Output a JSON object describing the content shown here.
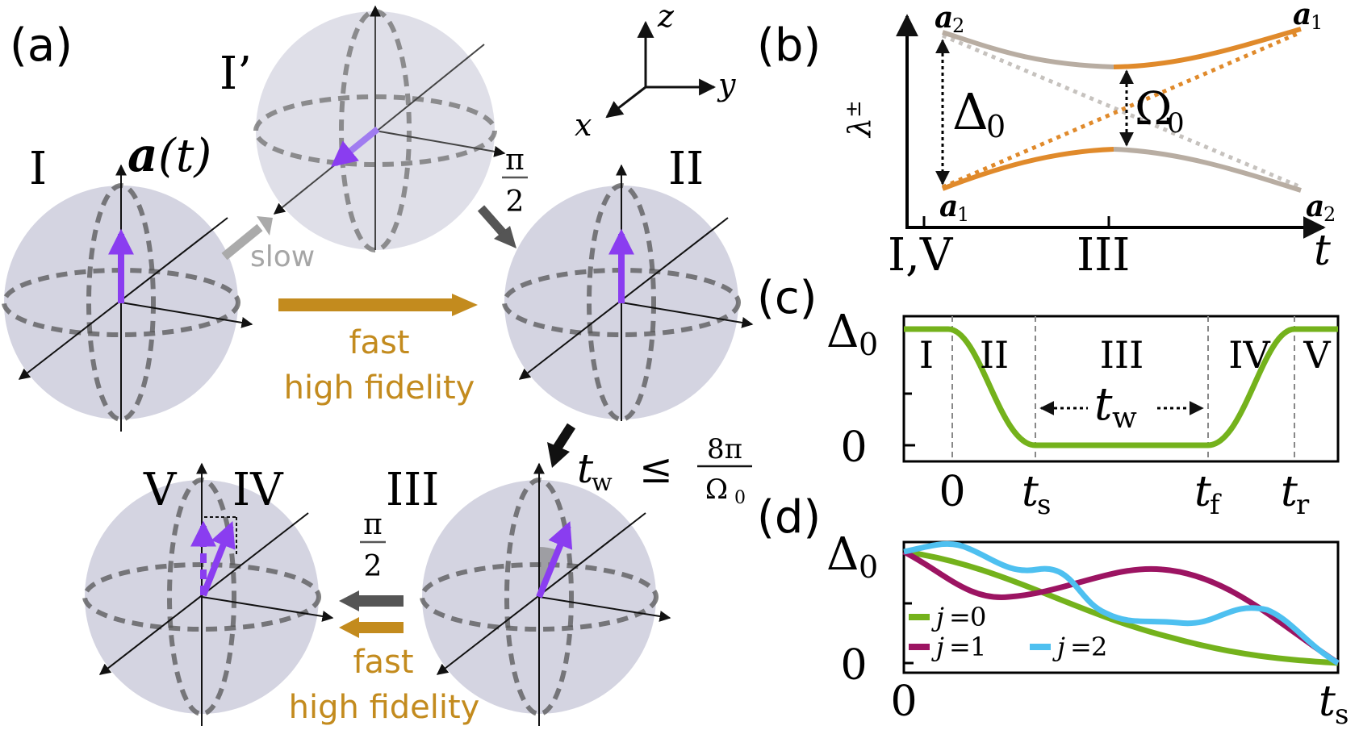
{
  "colors": {
    "purple": "#8a3df0",
    "gold": "#c38b1e",
    "orange": "#e08a2b",
    "gray": "#b0a9a2",
    "green": "#74b21c",
    "magenta": "#9c1462",
    "cyan": "#4ec0f0",
    "sphere": "#d7d7e3"
  },
  "panel_a": {
    "label": "(a)",
    "stages": {
      "I": "I",
      "I_prime": "I’",
      "II": "II",
      "III": "III",
      "IV": "IV",
      "V": "V"
    },
    "vector_label": {
      "symbol": "a",
      "arg": "(t)"
    },
    "axes": {
      "x": "x",
      "y": "y",
      "z": "z"
    },
    "pi": "π",
    "two": "2",
    "slow": "slow",
    "fast_1": "fast",
    "fidelity_1": "high fidelity",
    "fast_2": "fast",
    "fidelity_2": "high fidelity",
    "tw_condition": {
      "t": "t",
      "sub": "w",
      "leq": "≤",
      "num": "8π",
      "den": "Ω",
      "den_sub": "0"
    }
  },
  "panel_b": {
    "label": "(b)",
    "ylabel": {
      "symbol": "λ",
      "sup": "±"
    },
    "xlabel": "t",
    "ticks": [
      "I,V",
      "III"
    ],
    "delta": {
      "symbol": "Δ",
      "sub": "0"
    },
    "omega": {
      "symbol": "Ω",
      "sub": "0"
    },
    "a1": {
      "symbol": "a",
      "sub": "1"
    },
    "a2": {
      "symbol": "a",
      "sub": "2"
    }
  },
  "panel_c": {
    "label": "(c)",
    "ytick_top": {
      "symbol": "Δ",
      "sub": "0"
    },
    "ytick_bottom": "0",
    "xticks": [
      {
        "t": "0",
        "sub": ""
      },
      {
        "t": "t",
        "sub": "s"
      },
      {
        "t": "t",
        "sub": "f"
      },
      {
        "t": "t",
        "sub": "r"
      }
    ],
    "regions": [
      "I",
      "II",
      "III",
      "IV",
      "V"
    ],
    "tw": {
      "t": "t",
      "sub": "w"
    }
  },
  "panel_d": {
    "label": "(d)",
    "ytick_top": {
      "symbol": "Δ",
      "sub": "0"
    },
    "ytick_bottom": "0",
    "xtick_left": "0",
    "xtick_right": {
      "t": "t",
      "sub": "s"
    },
    "legend": [
      {
        "j": "j",
        "eq": "=",
        "val": "0"
      },
      {
        "j": "j",
        "eq": "=",
        "val": "1"
      },
      {
        "j": "j",
        "eq": "=",
        "val": "2"
      }
    ]
  }
}
